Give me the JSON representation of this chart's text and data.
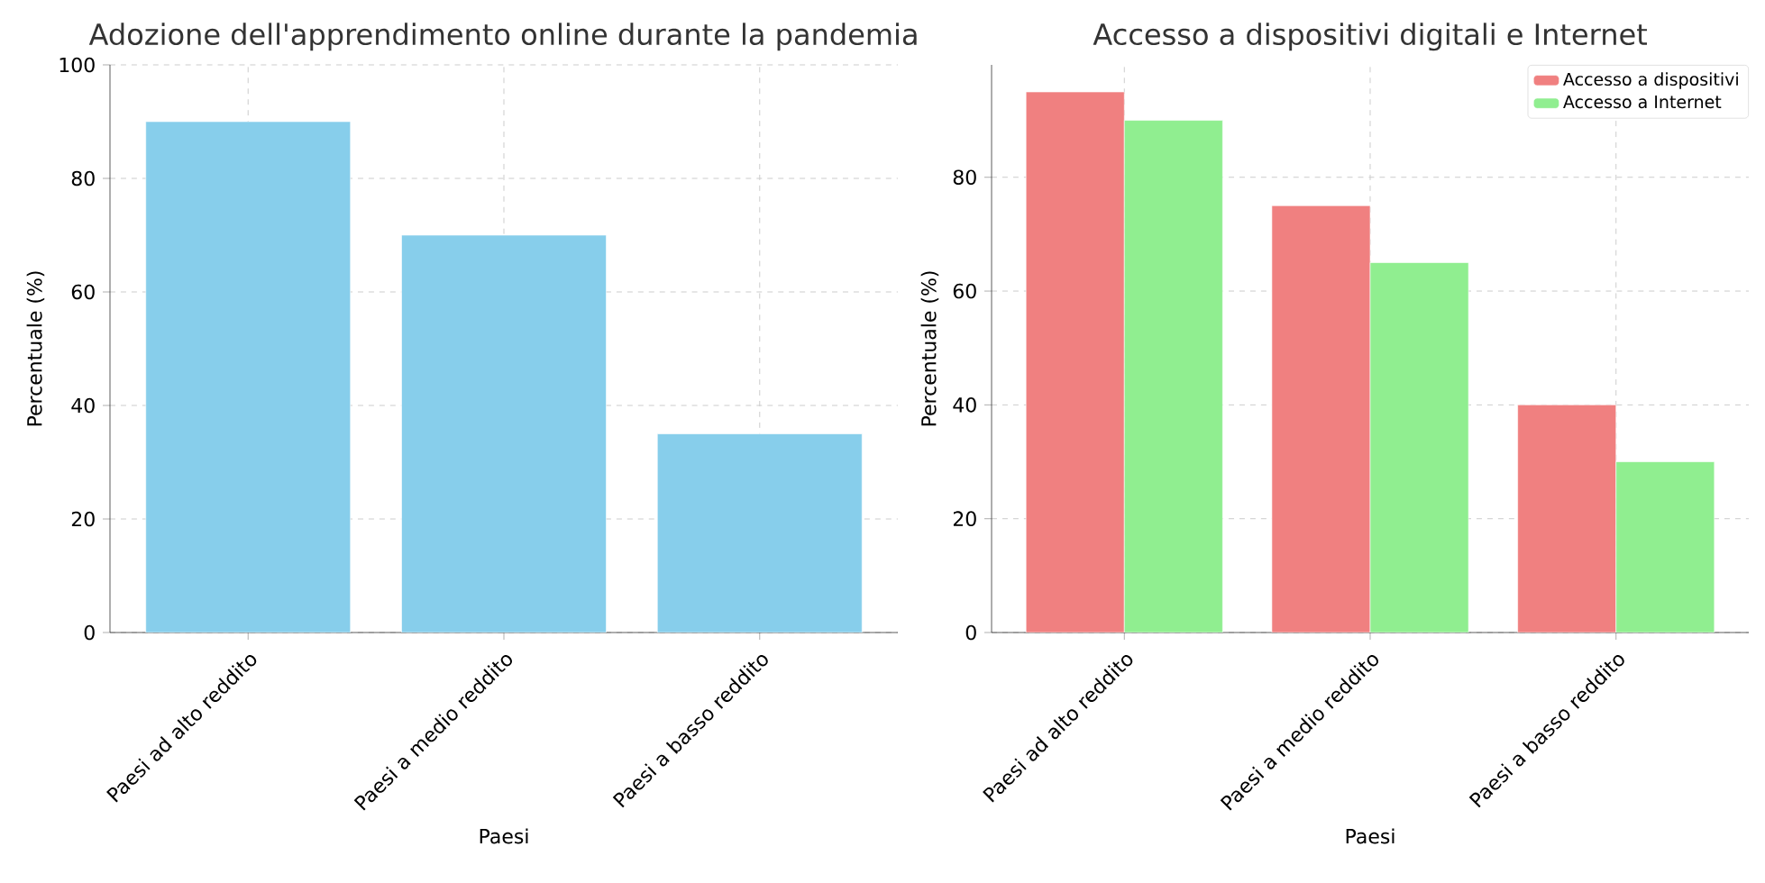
{
  "chart_data": [
    {
      "type": "bar",
      "title": "Adozione dell'apprendimento online durante la pandemia",
      "xlabel": "Paesi",
      "ylabel": "Percentuale (%)",
      "categories": [
        "Paesi ad alto reddito",
        "Paesi a medio reddito",
        "Paesi a basso reddito"
      ],
      "values": [
        90,
        70,
        35
      ],
      "color": "#87ceeb",
      "ylim": [
        0,
        100
      ],
      "yticks": [
        0,
        20,
        40,
        60,
        80,
        100
      ],
      "grid": true
    },
    {
      "type": "bar",
      "title": "Accesso a dispositivi digitali e Internet",
      "xlabel": "Paesi",
      "ylabel": "Percentuale (%)",
      "categories": [
        "Paesi ad alto reddito",
        "Paesi a medio reddito",
        "Paesi a basso reddito"
      ],
      "series": [
        {
          "name": "Accesso a dispositivi",
          "color": "#f08080",
          "values": [
            95,
            75,
            40
          ]
        },
        {
          "name": "Accesso a Internet",
          "color": "#90ee90",
          "values": [
            90,
            65,
            30
          ]
        }
      ],
      "ylim": [
        0,
        99.75
      ],
      "yticks": [
        0,
        20,
        40,
        60,
        80
      ],
      "grid": true,
      "legend": "top right"
    }
  ]
}
